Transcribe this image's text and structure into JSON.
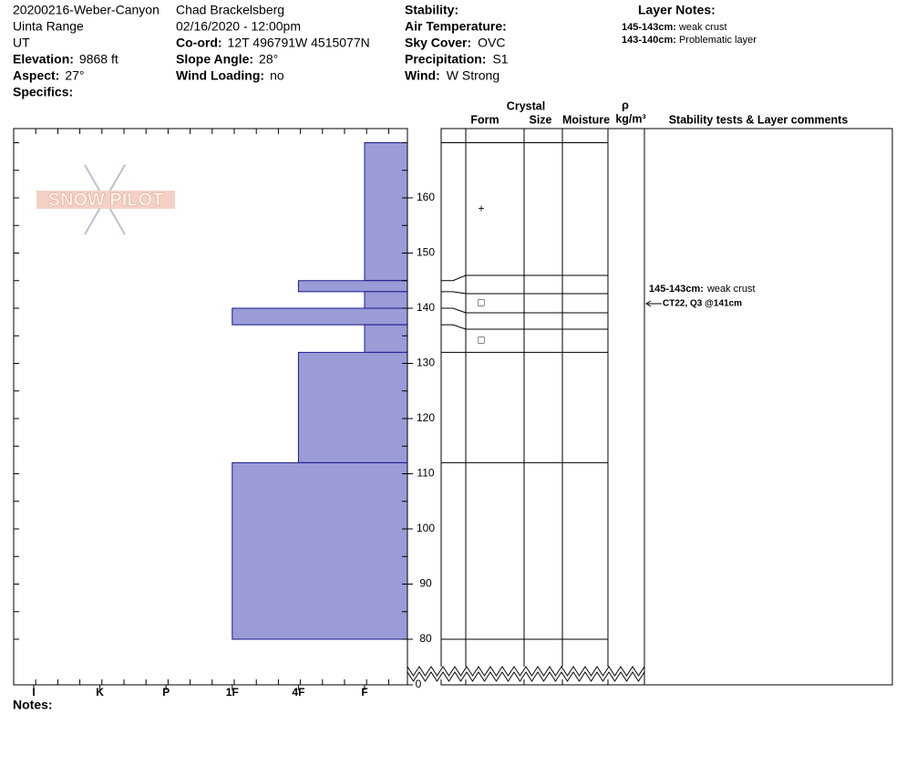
{
  "header": {
    "columns": [
      [
        {
          "text": "20200216-Weber-Canyon"
        },
        {
          "text": "Uinta Range"
        },
        {
          "text": "UT"
        },
        {
          "label": "Elevation:",
          "value": "9868 ft"
        },
        {
          "label": "Aspect:",
          "value": "27°"
        },
        {
          "label": "Specifics:"
        }
      ],
      [
        {
          "text": "Chad Brackelsberg"
        },
        {
          "text": "02/16/2020 - 12:00pm"
        },
        {
          "label": "Co-ord:",
          "value": "12T 496791W 4515077N"
        },
        {
          "label": "Slope Angle:",
          "value": "28°"
        },
        {
          "label": "Wind Loading:",
          "value": "no"
        }
      ],
      [
        {
          "label": "Stability:"
        },
        {
          "label": "Air Temperature:"
        },
        {
          "label": "Sky Cover:",
          "value": "OVC"
        },
        {
          "label": "Precipitation:",
          "value": "S1"
        },
        {
          "label": "Wind:",
          "value": "W Strong"
        }
      ]
    ],
    "layer_notes": {
      "title": "Layer Notes:",
      "items": [
        {
          "label": "145-143cm:",
          "text": "weak crust"
        },
        {
          "label": "143-140cm:",
          "text": "Problematic layer"
        }
      ]
    }
  },
  "logo": "SNOW PILOT",
  "columns": {
    "crystal": "Crystal",
    "form": "Form",
    "size": "Size",
    "moisture": "Moisture",
    "rho": "ρ",
    "density_unit": "kg/m³",
    "comments": "Stability tests & Layer comments"
  },
  "hardness_labels": [
    "I",
    "K",
    "P",
    "1F",
    "4F",
    "F"
  ],
  "height_ticks": [
    80,
    90,
    100,
    110,
    120,
    130,
    140,
    150,
    160
  ],
  "ground_tick": 0,
  "layers": [
    {
      "top": 170,
      "bottom": 145,
      "hardness": "F",
      "form": "+"
    },
    {
      "top": 145,
      "bottom": 143,
      "hardness": "4F"
    },
    {
      "top": 143,
      "bottom": 140,
      "hardness": "F",
      "form": "□"
    },
    {
      "top": 140,
      "bottom": 137,
      "hardness": "1F"
    },
    {
      "top": 137,
      "bottom": 132,
      "hardness": "F",
      "form": "□"
    },
    {
      "top": 132,
      "bottom": 112,
      "hardness": "4F"
    },
    {
      "top": 112,
      "bottom": 80,
      "hardness": "1F"
    }
  ],
  "comments": {
    "layer": {
      "label": "145-143cm:",
      "text": "weak crust"
    },
    "test": "CT22, Q3 @141cm"
  },
  "notes": "Notes:"
}
